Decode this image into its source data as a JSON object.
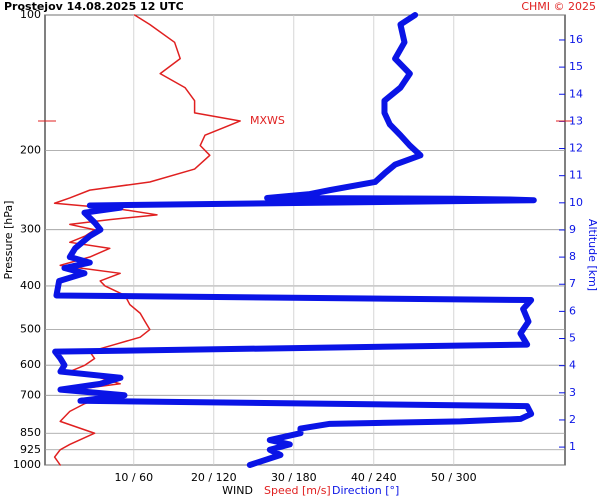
{
  "chart_data": {
    "type": "profile",
    "title": "Prostejov   14.08.2025 12 UTC",
    "credit": "CHMI © 2025",
    "ylabel": "Pressure [hPa]",
    "y2label": "Altitude [km]",
    "xlabel": "WIND",
    "log_y": true,
    "ylim": [
      1000,
      100
    ],
    "yticks": [
      100,
      200,
      300,
      400,
      500,
      600,
      700,
      850,
      925,
      1000
    ],
    "xlim": [
      -1.1,
      63.9
    ],
    "x2lim": [
      -6.6,
      383.4
    ],
    "xticks": [
      {
        "value": 10,
        "label": "10 / 60"
      },
      {
        "value": 20,
        "label": "20 / 120"
      },
      {
        "value": 30,
        "label": "30 / 180"
      },
      {
        "value": 40,
        "label": "40 / 240"
      },
      {
        "value": 50,
        "label": "50 / 300"
      }
    ],
    "y2lim": [
      0.34,
      16.92
    ],
    "y2ticks": [
      1,
      2,
      3,
      4,
      5,
      6,
      7,
      8,
      9,
      10,
      11,
      12,
      13,
      14,
      15,
      16
    ],
    "grid": true,
    "mxws": {
      "label": "MXWS",
      "pressure": 172,
      "color": "#e02020"
    },
    "series": [
      {
        "name": "Speed [m/s]",
        "color": "#e02020",
        "y": [
          100,
          105,
          115,
          125,
          135,
          145,
          155,
          165,
          172,
          185,
          195,
          205,
          220,
          235,
          245,
          255,
          262,
          270,
          278,
          285,
          292,
          300,
          310,
          320,
          330,
          345,
          360,
          375,
          390,
          400,
          420,
          440,
          460,
          480,
          500,
          520,
          540,
          560,
          580,
          600,
          620,
          640,
          660,
          680,
          700,
          730,
          760,
          800,
          850,
          900,
          925,
          960,
          1000
        ],
        "x": [
          10.1,
          12,
          15.1,
          15.8,
          13.3,
          16.4,
          17.6,
          17.6,
          23.3,
          18.9,
          18.3,
          19.5,
          17.6,
          12,
          4.5,
          2,
          0.1,
          8.3,
          12.9,
          7,
          2,
          5.1,
          3.9,
          2,
          7,
          4.5,
          0.8,
          8.3,
          5.8,
          6.4,
          8.9,
          9.5,
          10.8,
          11.4,
          12,
          10.8,
          7.6,
          4.5,
          5.1,
          3.9,
          2,
          5.8,
          8.3,
          2.6,
          7,
          3.9,
          2,
          0.8,
          5.1,
          2,
          0.8,
          0.1,
          0.8
        ]
      },
      {
        "name": "Direction [°]",
        "color": "#0a14e6",
        "axis": "x2",
        "y": [
          100,
          105,
          115,
          125,
          135,
          145,
          155,
          165,
          175,
          185,
          195,
          205,
          215,
          225,
          235,
          245,
          250,
          255,
          256,
          257,
          258,
          265,
          268,
          275,
          290,
          300,
          310,
          330,
          345,
          355,
          365,
          375,
          390,
          420,
          430,
          450,
          480,
          510,
          540,
          560,
          580,
          600,
          620,
          640,
          660,
          680,
          700,
          720,
          740,
          770,
          790,
          800,
          810,
          830,
          850,
          880,
          900,
          925,
          950,
          1000
        ],
        "x": [
          271,
          260,
          263,
          256,
          267,
          260,
          248,
          248,
          252,
          260,
          267,
          275,
          256,
          248,
          241,
          207,
          192,
          160,
          301,
          342,
          360,
          27,
          50,
          23,
          31,
          35,
          27,
          16,
          12,
          27,
          8,
          23,
          4,
          2,
          358,
          352,
          356,
          350,
          355,
          1,
          5,
          8,
          5,
          50,
          35,
          5,
          53,
          20,
          355,
          358,
          350,
          305,
          207,
          185,
          185,
          162,
          177,
          162,
          170,
          147
        ]
      }
    ]
  }
}
